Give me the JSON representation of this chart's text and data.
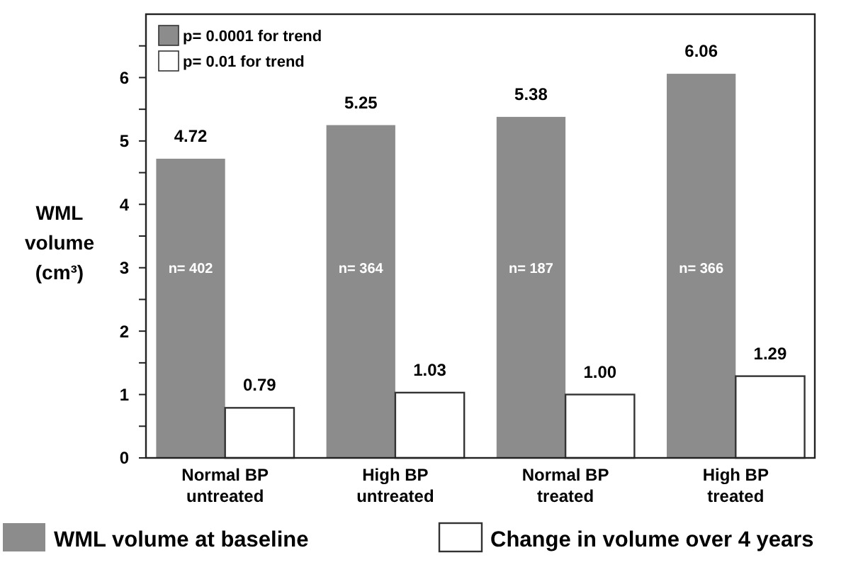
{
  "chart_data": {
    "type": "bar",
    "ylabel": "WML volume (cm³)",
    "categories": [
      "Normal BP\nuntreated",
      "High BP\nuntreated",
      "Normal BP\ntreated",
      "High BP\ntreated"
    ],
    "series": [
      {
        "name": "WML volume at baseline",
        "color": "#8c8c8c",
        "values": [
          4.72,
          5.25,
          5.38,
          6.06
        ]
      },
      {
        "name": "Change in volume over 4 years",
        "color": "#ffffff",
        "values": [
          0.79,
          1.03,
          1.0,
          1.29
        ]
      }
    ],
    "value_labels": [
      [
        "4.72",
        "5.25",
        "5.38",
        "6.06"
      ],
      [
        "0.79",
        "1.03",
        "1.00",
        "1.29"
      ]
    ],
    "ylim": [
      0,
      7
    ],
    "yticks": [
      0,
      {
        "value": 0.5,
        "label": null
      },
      1,
      {
        "value": 1.5,
        "label": null
      },
      2,
      {
        "value": 2.5,
        "label": null
      },
      3,
      {
        "value": 3.5,
        "label": null
      },
      4,
      {
        "value": 4.5,
        "label": null
      },
      5,
      {
        "value": 5.5,
        "label": null
      },
      6,
      {
        "value": 6.5,
        "label": null
      }
    ],
    "annotations": [
      "p= 0.0001 for trend",
      "p= 0.01 for trend",
      {
        "text": "n= 402",
        "x": "Normal BP\nuntreated",
        "y": 3
      },
      {
        "text": "n= 364",
        "x": "High BP\nuntreated",
        "y": 3
      },
      {
        "text": "n= 187",
        "x": "Normal BP\ntreated",
        "y": 3
      },
      {
        "text": "n= 366",
        "x": "High BP\ntreated",
        "y": 3
      }
    ],
    "legend": "bottom",
    "grid": false
  }
}
